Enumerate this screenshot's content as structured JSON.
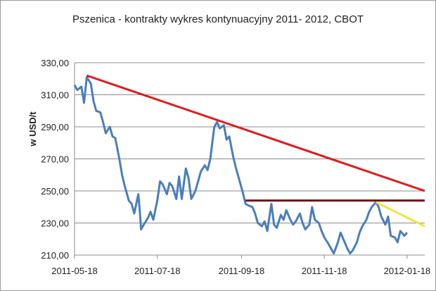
{
  "chart_data": {
    "type": "line",
    "title": "Pszenica - kontrakty wykres kontynuacyjny 2011-  2012, CBOT",
    "xlabel": "",
    "ylabel": "w USD/t",
    "ylim": [
      210,
      330
    ],
    "yticks": [
      "330,00",
      "310,00",
      "290,00",
      "270,00",
      "250,00",
      "230,00",
      "210,00"
    ],
    "ytick_values": [
      330,
      310,
      290,
      270,
      250,
      230,
      210
    ],
    "xticks": [
      "2011-05-18",
      "2011-07-18",
      "2011-09-18",
      "2011-11-18",
      "2012-01-18"
    ],
    "xlim": [
      "2011-05-18",
      "2012-01-31"
    ],
    "grid": true,
    "series": [
      {
        "color": "#4a7ebb",
        "points": [
          [
            "2011-05-18",
            316
          ],
          [
            "2011-05-20",
            313
          ],
          [
            "2011-05-23",
            315
          ],
          [
            "2011-05-25",
            305
          ],
          [
            "2011-05-27",
            321
          ],
          [
            "2011-05-30",
            317
          ],
          [
            "2011-06-01",
            306
          ],
          [
            "2011-06-03",
            300
          ],
          [
            "2011-06-06",
            299
          ],
          [
            "2011-06-08",
            293
          ],
          [
            "2011-06-10",
            286
          ],
          [
            "2011-06-13",
            290
          ],
          [
            "2011-06-15",
            284
          ],
          [
            "2011-06-17",
            283
          ],
          [
            "2011-06-20",
            270
          ],
          [
            "2011-06-22",
            260
          ],
          [
            "2011-06-24",
            253
          ],
          [
            "2011-06-27",
            244
          ],
          [
            "2011-06-29",
            242
          ],
          [
            "2011-07-01",
            236
          ],
          [
            "2011-07-04",
            248
          ],
          [
            "2011-07-05",
            238
          ],
          [
            "2011-07-06",
            226
          ],
          [
            "2011-07-08",
            229
          ],
          [
            "2011-07-11",
            233
          ],
          [
            "2011-07-13",
            237
          ],
          [
            "2011-07-15",
            232
          ],
          [
            "2011-07-18",
            244
          ],
          [
            "2011-07-20",
            256
          ],
          [
            "2011-07-22",
            254
          ],
          [
            "2011-07-25",
            248
          ],
          [
            "2011-07-27",
            255
          ],
          [
            "2011-07-29",
            253
          ],
          [
            "2011-08-01",
            245
          ],
          [
            "2011-08-03",
            259
          ],
          [
            "2011-08-05",
            245
          ],
          [
            "2011-08-08",
            264
          ],
          [
            "2011-08-10",
            258
          ],
          [
            "2011-08-12",
            245
          ],
          [
            "2011-08-15",
            250
          ],
          [
            "2011-08-17",
            256
          ],
          [
            "2011-08-19",
            262
          ],
          [
            "2011-08-22",
            266
          ],
          [
            "2011-08-24",
            263
          ],
          [
            "2011-08-26",
            270
          ],
          [
            "2011-08-29",
            290
          ],
          [
            "2011-08-31",
            293
          ],
          [
            "2011-09-02",
            289
          ],
          [
            "2011-09-05",
            291
          ],
          [
            "2011-09-07",
            282
          ],
          [
            "2011-09-09",
            284
          ],
          [
            "2011-09-12",
            271
          ],
          [
            "2011-09-14",
            264
          ],
          [
            "2011-09-16",
            258
          ],
          [
            "2011-09-19",
            249
          ],
          [
            "2011-09-21",
            242
          ],
          [
            "2011-09-23",
            241
          ],
          [
            "2011-09-26",
            240
          ],
          [
            "2011-09-28",
            236
          ],
          [
            "2011-09-30",
            230
          ],
          [
            "2011-10-03",
            228
          ],
          [
            "2011-10-05",
            231
          ],
          [
            "2011-10-07",
            225
          ],
          [
            "2011-10-10",
            242
          ],
          [
            "2011-10-12",
            229
          ],
          [
            "2011-10-14",
            227
          ],
          [
            "2011-10-17",
            235
          ],
          [
            "2011-10-19",
            232
          ],
          [
            "2011-10-21",
            238
          ],
          [
            "2011-10-24",
            232
          ],
          [
            "2011-10-26",
            229
          ],
          [
            "2011-10-28",
            231
          ],
          [
            "2011-10-31",
            236
          ],
          [
            "2011-11-02",
            230
          ],
          [
            "2011-11-04",
            226
          ],
          [
            "2011-11-07",
            229
          ],
          [
            "2011-11-09",
            240
          ],
          [
            "2011-11-11",
            232
          ],
          [
            "2011-11-14",
            230
          ],
          [
            "2011-11-16",
            225
          ],
          [
            "2011-11-18",
            221
          ],
          [
            "2011-11-21",
            217
          ],
          [
            "2011-11-23",
            214
          ],
          [
            "2011-11-25",
            211
          ],
          [
            "2011-11-28",
            218
          ],
          [
            "2011-11-30",
            224
          ],
          [
            "2011-12-02",
            220
          ],
          [
            "2011-12-05",
            214
          ],
          [
            "2011-12-07",
            211
          ],
          [
            "2011-12-09",
            213
          ],
          [
            "2011-12-12",
            218
          ],
          [
            "2011-12-14",
            224
          ],
          [
            "2011-12-16",
            228
          ],
          [
            "2011-12-19",
            232
          ],
          [
            "2011-12-21",
            237
          ],
          [
            "2011-12-23",
            240
          ],
          [
            "2011-12-26",
            243
          ],
          [
            "2011-12-28",
            240
          ],
          [
            "2011-12-30",
            234
          ],
          [
            "2012-01-02",
            229
          ],
          [
            "2012-01-04",
            234
          ],
          [
            "2012-01-06",
            222
          ],
          [
            "2012-01-09",
            221
          ],
          [
            "2012-01-11",
            218
          ],
          [
            "2012-01-13",
            225
          ],
          [
            "2012-01-16",
            222
          ],
          [
            "2012-01-18",
            224
          ]
        ]
      }
    ],
    "trendlines": [
      {
        "color": "#e01b1b",
        "from": [
          "2011-05-27",
          322
        ],
        "to": [
          "2012-01-31",
          250
        ]
      },
      {
        "color": "#7a0f13",
        "from": [
          "2011-09-21",
          244
        ],
        "to": [
          "2012-01-31",
          244
        ]
      },
      {
        "color": "#f2e23a",
        "from": [
          "2011-12-26",
          243
        ],
        "to": [
          "2012-01-31",
          228
        ]
      }
    ]
  }
}
